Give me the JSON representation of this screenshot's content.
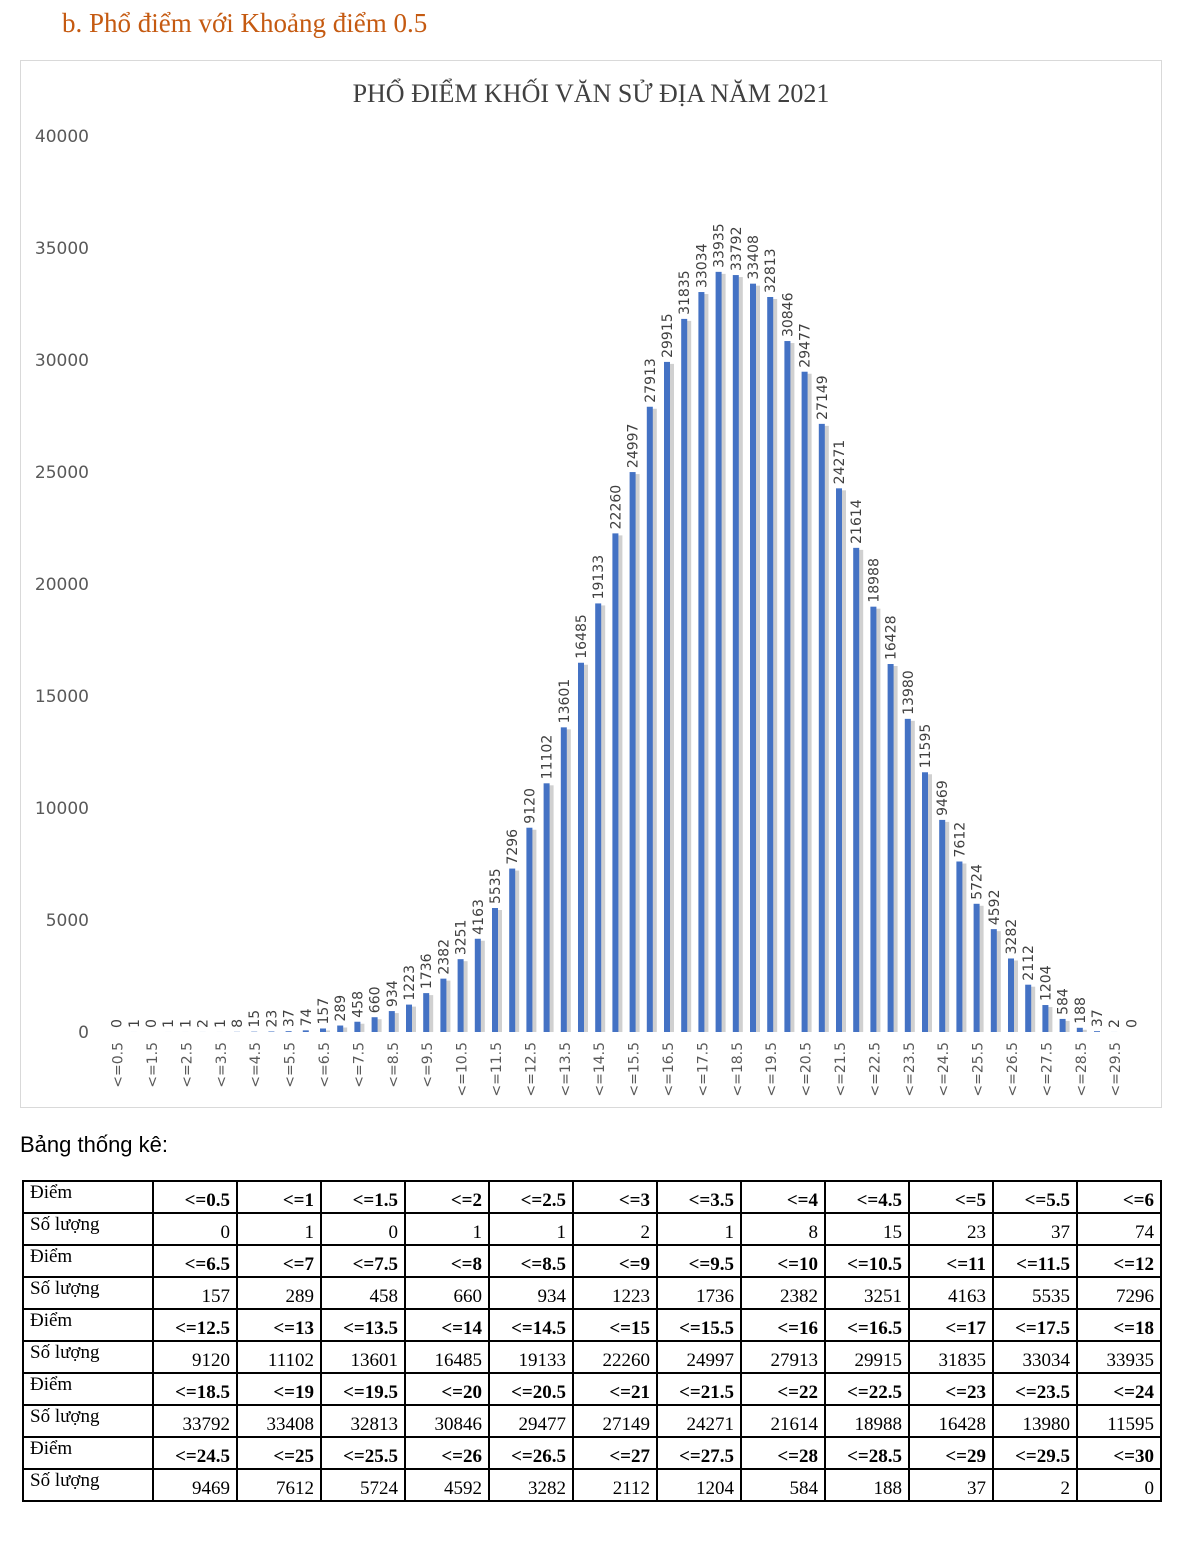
{
  "heading": "b.  Phổ điểm với Khoảng điểm 0.5",
  "stats_label": "Bảng thống kê:",
  "table": {
    "row_label_score": "Điểm",
    "row_label_count": "Số lượng"
  },
  "colors": {
    "bar": "#4472c4",
    "heading": "#c55a11",
    "grid_text": "#595959"
  },
  "chart_data": {
    "type": "bar",
    "title": "PHỔ ĐIỂM KHỐI VĂN SỬ ĐỊA NĂM 2021",
    "xlabel": "",
    "ylabel": "",
    "ylim": [
      0,
      40000
    ],
    "yticks": [
      0,
      5000,
      10000,
      15000,
      20000,
      25000,
      30000,
      35000,
      40000
    ],
    "grid": false,
    "legend": "none",
    "categories": [
      "<=0.5",
      "<=1",
      "<=1.5",
      "<=2",
      "<=2.5",
      "<=3",
      "<=3.5",
      "<=4",
      "<=4.5",
      "<=5",
      "<=5.5",
      "<=6",
      "<=6.5",
      "<=7",
      "<=7.5",
      "<=8",
      "<=8.5",
      "<=9",
      "<=9.5",
      "<=10",
      "<=10.5",
      "<=11",
      "<=11.5",
      "<=12",
      "<=12.5",
      "<=13",
      "<=13.5",
      "<=14",
      "<=14.5",
      "<=15",
      "<=15.5",
      "<=16",
      "<=16.5",
      "<=17",
      "<=17.5",
      "<=18",
      "<=18.5",
      "<=19",
      "<=19.5",
      "<=20",
      "<=20.5",
      "<=21",
      "<=21.5",
      "<=22",
      "<=22.5",
      "<=23",
      "<=23.5",
      "<=24",
      "<=24.5",
      "<=25",
      "<=25.5",
      "<=26",
      "<=26.5",
      "<=27",
      "<=27.5",
      "<=28",
      "<=28.5",
      "<=29",
      "<=29.5",
      "<=30"
    ],
    "values": [
      0,
      1,
      0,
      1,
      1,
      2,
      1,
      8,
      15,
      23,
      37,
      74,
      157,
      289,
      458,
      660,
      934,
      1223,
      1736,
      2382,
      3251,
      4163,
      5535,
      7296,
      9120,
      11102,
      13601,
      16485,
      19133,
      22260,
      24997,
      27913,
      29915,
      31835,
      33034,
      33935,
      33792,
      33408,
      32813,
      30846,
      29477,
      27149,
      24271,
      21614,
      18988,
      16428,
      13980,
      11595,
      9469,
      7612,
      5724,
      4592,
      3282,
      2112,
      1204,
      584,
      188,
      37,
      2,
      0
    ]
  }
}
